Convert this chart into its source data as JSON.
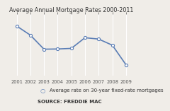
{
  "title": "Average Annual Mortgage Rates 2000-2011",
  "years": [
    2001,
    2002,
    2003,
    2004,
    2005,
    2006,
    2007,
    2008,
    2009
  ],
  "rates": [
    7.0,
    6.54,
    5.83,
    5.84,
    5.87,
    6.41,
    6.34,
    6.03,
    5.04
  ],
  "line_color": "#5a7db5",
  "marker_style": "o",
  "marker_facecolor": "white",
  "marker_edgecolor": "#5a7db5",
  "marker_size": 3.0,
  "marker_edgewidth": 0.8,
  "line_width": 1.2,
  "legend_label": "Average rate on 30-year fixed-rate mortgages",
  "legend_marker": "○",
  "source_text": "SOURCE: FREDDIE MAC",
  "background_color": "#f0ede8",
  "grid_color": "#ffffff",
  "xlim": [
    2000.3,
    2009.7
  ],
  "ylim": [
    4.5,
    7.6
  ],
  "title_fontsize": 5.8,
  "legend_fontsize": 5.0,
  "source_fontsize": 5.0,
  "tick_fontsize": 4.8,
  "title_color": "#333333",
  "tick_color": "#555555",
  "text_color": "#333333"
}
